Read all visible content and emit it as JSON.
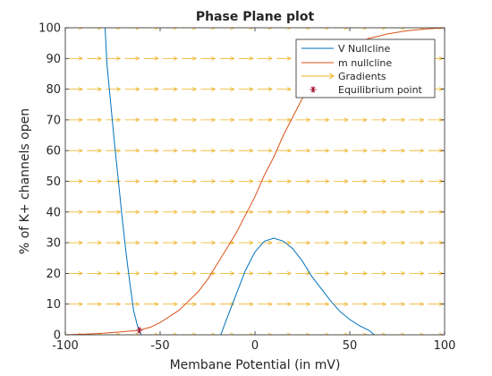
{
  "chart_data": {
    "type": "line",
    "title": "Phase Plane plot",
    "xlabel": "Membane Potential (in mV)",
    "ylabel": "% of K+ channels open",
    "xlim": [
      -100,
      100
    ],
    "ylim": [
      0,
      100
    ],
    "xticks": [
      -100,
      -50,
      0,
      50,
      100
    ],
    "yticks": [
      0,
      10,
      20,
      30,
      40,
      50,
      60,
      70,
      80,
      90,
      100
    ],
    "grid": false,
    "legend_position": "top-right",
    "series": [
      {
        "name": "V Nullcline",
        "color": "#0072BD",
        "segments": [
          [
            [
              -79,
              100
            ],
            [
              -78,
              88
            ],
            [
              -76,
              75
            ],
            [
              -74,
              62
            ],
            [
              -72,
              50
            ],
            [
              -70,
              38
            ],
            [
              -68,
              27
            ],
            [
              -66,
              17
            ],
            [
              -64,
              8
            ],
            [
              -62,
              3
            ],
            [
              -61,
              1.5
            ],
            [
              -60,
              0
            ]
          ],
          [
            [
              -18,
              0
            ],
            [
              -15,
              5
            ],
            [
              -10,
              13
            ],
            [
              -5,
              21
            ],
            [
              0,
              27
            ],
            [
              5,
              30.5
            ],
            [
              10,
              31.5
            ],
            [
              15,
              30.5
            ],
            [
              20,
              28
            ],
            [
              25,
              24
            ],
            [
              30,
              19
            ],
            [
              35,
              15
            ],
            [
              40,
              11
            ],
            [
              45,
              7.5
            ],
            [
              50,
              5
            ],
            [
              55,
              3
            ],
            [
              60,
              1.5
            ],
            [
              63,
              0
            ]
          ]
        ]
      },
      {
        "name": "m nullcline",
        "color": "#D95319",
        "points": [
          [
            -100,
            0
          ],
          [
            -90,
            0.2
          ],
          [
            -80,
            0.5
          ],
          [
            -70,
            1
          ],
          [
            -61,
            1.5
          ],
          [
            -55,
            2.5
          ],
          [
            -50,
            4
          ],
          [
            -45,
            6
          ],
          [
            -40,
            8
          ],
          [
            -35,
            11
          ],
          [
            -30,
            14
          ],
          [
            -25,
            18
          ],
          [
            -20,
            23
          ],
          [
            -15,
            28
          ],
          [
            -10,
            33
          ],
          [
            -5,
            39
          ],
          [
            0,
            45
          ],
          [
            5,
            52
          ],
          [
            10,
            58
          ],
          [
            15,
            65
          ],
          [
            20,
            71
          ],
          [
            25,
            77
          ],
          [
            30,
            82
          ],
          [
            35,
            86
          ],
          [
            40,
            89
          ],
          [
            45,
            92
          ],
          [
            50,
            94
          ],
          [
            60,
            96.5
          ],
          [
            70,
            98
          ],
          [
            80,
            99
          ],
          [
            90,
            99.6
          ],
          [
            100,
            100
          ]
        ]
      },
      {
        "name": "Gradients",
        "color": "#EDB120",
        "style": "quiver"
      },
      {
        "name": "Equilibrium point",
        "color": "#A2142F",
        "marker": "*",
        "points": [
          [
            -61,
            1.5
          ]
        ]
      }
    ]
  }
}
